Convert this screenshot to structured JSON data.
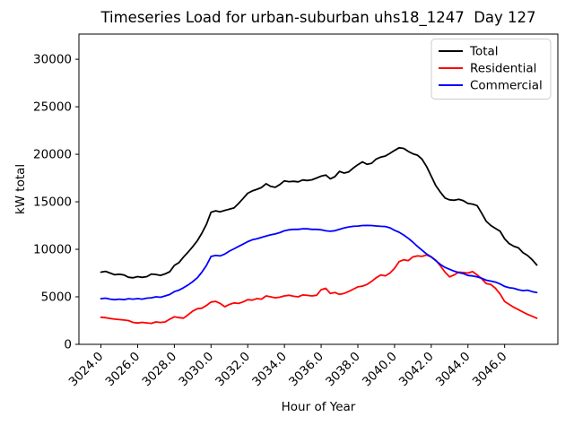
{
  "chart_data": {
    "type": "line",
    "title": "Timeseries Load for urban-suburban uhs18_1247  Day 127",
    "xlabel": "Hour of Year",
    "ylabel": "kW total",
    "xlim": [
      3022.8,
      3048.9
    ],
    "ylim": [
      0,
      32650
    ],
    "grid": false,
    "xticks": [
      3024,
      3026,
      3028,
      3030,
      3032,
      3034,
      3036,
      3038,
      3040,
      3042,
      3044,
      3046
    ],
    "xtick_labels": [
      "3024.0",
      "3026.0",
      "3028.0",
      "3030.0",
      "3032.0",
      "3034.0",
      "3036.0",
      "3038.0",
      "3040.0",
      "3042.0",
      "3044.0",
      "3046.0"
    ],
    "yticks": [
      0,
      5000,
      10000,
      15000,
      20000,
      25000,
      30000
    ],
    "ytick_labels": [
      "0",
      "5000",
      "10000",
      "15000",
      "20000",
      "25000",
      "30000"
    ],
    "legend": {
      "position": "upper right"
    },
    "x_start": 3024.0,
    "x_step": 0.25,
    "n_points": 96,
    "series": [
      {
        "name": "Total",
        "color": "#000000",
        "values": [
          7600,
          7680,
          7500,
          7320,
          7380,
          7300,
          7060,
          7000,
          7120,
          7050,
          7120,
          7400,
          7350,
          7260,
          7420,
          7640,
          8300,
          8600,
          9180,
          9700,
          10280,
          10900,
          11700,
          12640,
          13900,
          14050,
          13950,
          14100,
          14220,
          14350,
          14820,
          15350,
          15900,
          16150,
          16320,
          16500,
          16900,
          16620,
          16520,
          16820,
          17200,
          17120,
          17160,
          17100,
          17300,
          17240,
          17320,
          17500,
          17700,
          17820,
          17420,
          17650,
          18200,
          18020,
          18150,
          18550,
          18900,
          19200,
          18950,
          19050,
          19500,
          19700,
          19820,
          20100,
          20400,
          20680,
          20620,
          20300,
          20050,
          19900,
          19480,
          18700,
          17700,
          16700,
          16000,
          15400,
          15200,
          15160,
          15260,
          15120,
          14820,
          14760,
          14600,
          13800,
          12950,
          12500,
          12200,
          11900,
          11100,
          10600,
          10320,
          10150,
          9650,
          9350,
          8900,
          8350
        ]
      },
      {
        "name": "Residential",
        "color": "#ff0000",
        "values": [
          2850,
          2800,
          2720,
          2650,
          2600,
          2560,
          2500,
          2300,
          2250,
          2310,
          2260,
          2210,
          2360,
          2300,
          2360,
          2650,
          2900,
          2810,
          2760,
          3100,
          3500,
          3750,
          3800,
          4100,
          4450,
          4520,
          4300,
          3950,
          4200,
          4360,
          4300,
          4460,
          4700,
          4650,
          4810,
          4760,
          5100,
          5000,
          4900,
          4960,
          5100,
          5160,
          5060,
          5000,
          5200,
          5150,
          5100,
          5160,
          5750,
          5900,
          5350,
          5450,
          5260,
          5360,
          5560,
          5800,
          6050,
          6120,
          6300,
          6620,
          7000,
          7300,
          7210,
          7500,
          8000,
          8700,
          8900,
          8810,
          9200,
          9300,
          9260,
          9400,
          9200,
          8850,
          8250,
          7600,
          7100,
          7300,
          7600,
          7560,
          7500,
          7650,
          7300,
          6900,
          6400,
          6300,
          5900,
          5300,
          4500,
          4200,
          3900,
          3650,
          3400,
          3150,
          2950,
          2750
        ]
      },
      {
        "name": "Commercial",
        "color": "#0000ff",
        "values": [
          4800,
          4860,
          4760,
          4700,
          4760,
          4700,
          4800,
          4760,
          4810,
          4760,
          4860,
          4900,
          5000,
          4950,
          5100,
          5250,
          5550,
          5700,
          5950,
          6250,
          6600,
          7000,
          7600,
          8300,
          9250,
          9350,
          9300,
          9500,
          9810,
          10050,
          10300,
          10550,
          10800,
          11000,
          11120,
          11260,
          11400,
          11520,
          11620,
          11760,
          11950,
          12050,
          12100,
          12100,
          12160,
          12150,
          12100,
          12100,
          12050,
          11950,
          11900,
          11960,
          12100,
          12250,
          12350,
          12420,
          12450,
          12500,
          12510,
          12500,
          12460,
          12420,
          12400,
          12260,
          12000,
          11800,
          11500,
          11150,
          10750,
          10300,
          9900,
          9500,
          9200,
          8800,
          8400,
          8100,
          7900,
          7700,
          7550,
          7450,
          7250,
          7200,
          7100,
          6950,
          6750,
          6650,
          6550,
          6350,
          6100,
          5950,
          5900,
          5750,
          5650,
          5700,
          5550,
          5450
        ]
      }
    ]
  }
}
